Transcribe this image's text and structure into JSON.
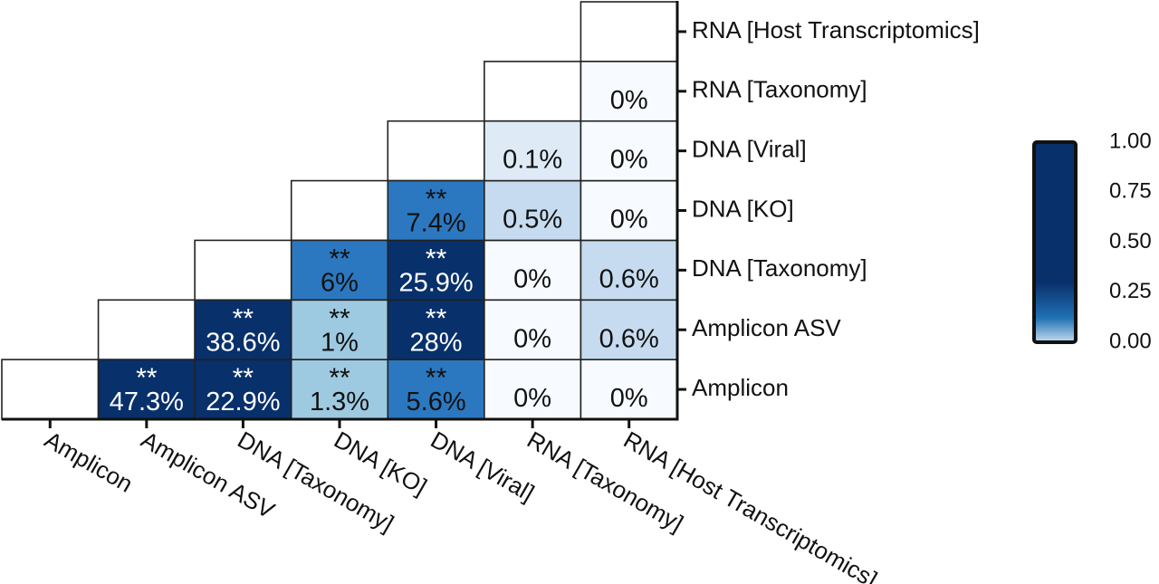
{
  "chart_data": {
    "type": "heatmap",
    "labels": [
      "Amplicon",
      "Amplicon ASV",
      "DNA [Taxonomy]",
      "DNA [KO]",
      "DNA [Viral]",
      "RNA [Taxonomy]",
      "RNA [Host Transcriptomics]"
    ],
    "cells": [
      {
        "row": "Amplicon",
        "col": "Amplicon ASV",
        "value": 0.473,
        "label": "47.3%",
        "sig": "**"
      },
      {
        "row": "Amplicon",
        "col": "DNA [Taxonomy]",
        "value": 0.229,
        "label": "22.9%",
        "sig": "**"
      },
      {
        "row": "Amplicon",
        "col": "DNA [KO]",
        "value": 0.013,
        "label": "1.3%",
        "sig": "**"
      },
      {
        "row": "Amplicon",
        "col": "DNA [Viral]",
        "value": 0.056,
        "label": "5.6%",
        "sig": "**"
      },
      {
        "row": "Amplicon",
        "col": "RNA [Taxonomy]",
        "value": 0.0,
        "label": "0%",
        "sig": ""
      },
      {
        "row": "Amplicon",
        "col": "RNA [Host Transcriptomics]",
        "value": 0.0,
        "label": "0%",
        "sig": ""
      },
      {
        "row": "Amplicon ASV",
        "col": "DNA [Taxonomy]",
        "value": 0.386,
        "label": "38.6%",
        "sig": "**"
      },
      {
        "row": "Amplicon ASV",
        "col": "DNA [KO]",
        "value": 0.01,
        "label": "1%",
        "sig": "**"
      },
      {
        "row": "Amplicon ASV",
        "col": "DNA [Viral]",
        "value": 0.28,
        "label": "28%",
        "sig": "**"
      },
      {
        "row": "Amplicon ASV",
        "col": "RNA [Taxonomy]",
        "value": 0.0,
        "label": "0%",
        "sig": ""
      },
      {
        "row": "Amplicon ASV",
        "col": "RNA [Host Transcriptomics]",
        "value": 0.006,
        "label": "0.6%",
        "sig": ""
      },
      {
        "row": "DNA [Taxonomy]",
        "col": "DNA [KO]",
        "value": 0.06,
        "label": "6%",
        "sig": "**"
      },
      {
        "row": "DNA [Taxonomy]",
        "col": "DNA [Viral]",
        "value": 0.259,
        "label": "25.9%",
        "sig": "**"
      },
      {
        "row": "DNA [Taxonomy]",
        "col": "RNA [Taxonomy]",
        "value": 0.0,
        "label": "0%",
        "sig": ""
      },
      {
        "row": "DNA [Taxonomy]",
        "col": "RNA [Host Transcriptomics]",
        "value": 0.006,
        "label": "0.6%",
        "sig": ""
      },
      {
        "row": "DNA [KO]",
        "col": "DNA [Viral]",
        "value": 0.074,
        "label": "7.4%",
        "sig": "**"
      },
      {
        "row": "DNA [KO]",
        "col": "RNA [Taxonomy]",
        "value": 0.005,
        "label": "0.5%",
        "sig": ""
      },
      {
        "row": "DNA [KO]",
        "col": "RNA [Host Transcriptomics]",
        "value": 0.0,
        "label": "0%",
        "sig": ""
      },
      {
        "row": "DNA [Viral]",
        "col": "RNA [Taxonomy]",
        "value": 0.001,
        "label": "0.1%",
        "sig": ""
      },
      {
        "row": "DNA [Viral]",
        "col": "RNA [Host Transcriptomics]",
        "value": 0.0,
        "label": "0%",
        "sig": ""
      },
      {
        "row": "RNA [Taxonomy]",
        "col": "RNA [Host Transcriptomics]",
        "value": 0.0,
        "label": "0%",
        "sig": ""
      }
    ],
    "colorbar": {
      "ticks": [
        "1.00",
        "0.75",
        "0.50",
        "0.25",
        "0.00"
      ],
      "range": [
        0,
        1
      ],
      "colors": {
        "low": "#c6dbef",
        "mid": "#2171b5",
        "high": "#08306b"
      }
    },
    "cell_colors": {
      "Amplicon|Amplicon ASV": "#08306b",
      "Amplicon|DNA [Taxonomy]": "#08306b",
      "Amplicon|DNA [KO]": "#9ecae1",
      "Amplicon|DNA [Viral]": "#2b78c0",
      "Amplicon|RNA [Taxonomy]": "#f7fbff",
      "Amplicon|RNA [Host Transcriptomics]": "#f7fbff",
      "Amplicon ASV|DNA [Taxonomy]": "#08306b",
      "Amplicon ASV|DNA [KO]": "#9ecae1",
      "Amplicon ASV|DNA [Viral]": "#08306b",
      "Amplicon ASV|RNA [Taxonomy]": "#f7fbff",
      "Amplicon ASV|RNA [Host Transcriptomics]": "#c6dbef",
      "DNA [Taxonomy]|DNA [KO]": "#2b78c0",
      "DNA [Taxonomy]|DNA [Viral]": "#08306b",
      "DNA [Taxonomy]|RNA [Taxonomy]": "#f7fbff",
      "DNA [Taxonomy]|RNA [Host Transcriptomics]": "#c6dbef",
      "DNA [KO]|DNA [Viral]": "#2b78c0",
      "DNA [KO]|RNA [Taxonomy]": "#c6dbef",
      "DNA [KO]|RNA [Host Transcriptomics]": "#f7fbff",
      "DNA [Viral]|RNA [Taxonomy]": "#deebf7",
      "DNA [Viral]|RNA [Host Transcriptomics]": "#f7fbff",
      "RNA [Taxonomy]|RNA [Host Transcriptomics]": "#f7fbff"
    },
    "text_colors": {
      "Amplicon|Amplicon ASV": "#ffffff",
      "Amplicon|DNA [Taxonomy]": "#ffffff",
      "Amplicon|DNA [KO]": "#111111",
      "Amplicon|DNA [Viral]": "#111111",
      "Amplicon ASV|DNA [Taxonomy]": "#ffffff",
      "Amplicon ASV|DNA [KO]": "#111111",
      "Amplicon ASV|DNA [Viral]": "#ffffff",
      "DNA [Taxonomy]|DNA [KO]": "#111111",
      "DNA [Taxonomy]|DNA [Viral]": "#ffffff",
      "DNA [KO]|DNA [Viral]": "#111111"
    },
    "empty_diagonal": true,
    "legend": "right"
  }
}
